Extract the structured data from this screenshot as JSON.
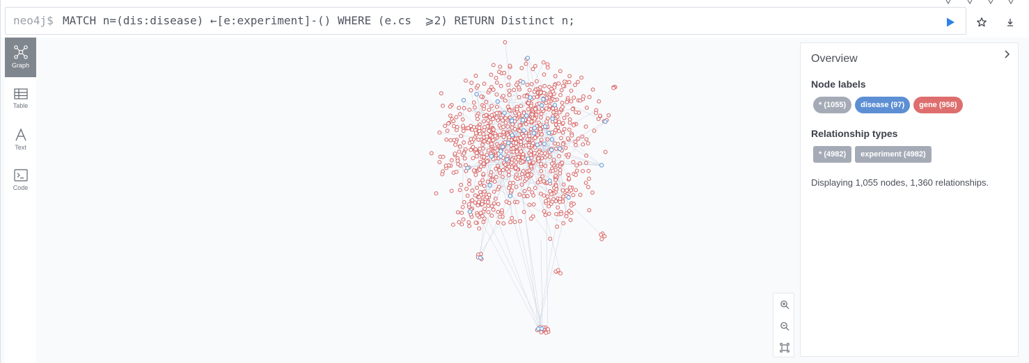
{
  "editor": {
    "prompt": "neo4j$",
    "query": "MATCH n=(dis:disease) ←[e:experiment]-() WHERE (e.cs  ⩾2) RETURN Distinct n;"
  },
  "toolbar": {
    "run_icon": "play-icon",
    "favorite_icon": "star-icon",
    "download_icon": "download-icon",
    "run_color": "#2f82e4"
  },
  "sidebar": {
    "items": [
      {
        "label": "Graph",
        "icon": "graph-icon",
        "active": true
      },
      {
        "label": "Table",
        "icon": "table-icon",
        "active": false
      },
      {
        "label": "Text",
        "icon": "text-icon",
        "active": false
      },
      {
        "label": "Code",
        "icon": "code-icon",
        "active": false
      }
    ]
  },
  "graph": {
    "colors": {
      "gene": "#d96b6b",
      "disease": "#6a9ed8",
      "edge": "#c9d3e0"
    }
  },
  "zoom": {
    "icons": [
      "zoom-in-icon",
      "zoom-out-icon",
      "fit-icon"
    ]
  },
  "overview": {
    "title": "Overview",
    "node_labels_title": "Node labels",
    "node_labels": [
      {
        "label": "* (1055)",
        "color": "#a5abb6"
      },
      {
        "label": "disease (97)",
        "color": "#5d8fd4"
      },
      {
        "label": "gene (958)",
        "color": "#de6e6e"
      }
    ],
    "rel_types_title": "Relationship types",
    "rel_types": [
      {
        "label": "* (4982)",
        "color": "#a5abb6"
      },
      {
        "label": "experiment (4982)",
        "color": "#a5abb6"
      }
    ],
    "status": "Displaying 1,055 nodes, 1,360 relationships."
  }
}
